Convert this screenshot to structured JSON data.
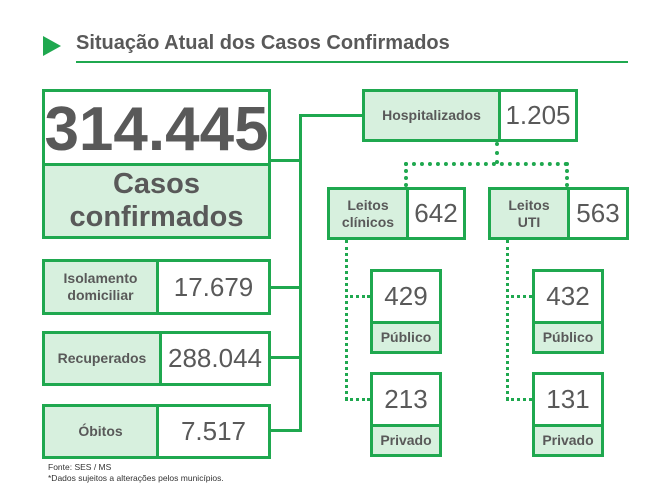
{
  "title": "Situação Atual dos Casos Confirmados",
  "confirmed": {
    "value": "314.445",
    "label_line1": "Casos",
    "label_line2": "confirmados"
  },
  "isolation": {
    "label_line1": "Isolamento",
    "label_line2": "domiciliar",
    "value": "17.679"
  },
  "recovered": {
    "label": "Recuperados",
    "value": "288.044"
  },
  "deaths": {
    "label": "Óbitos",
    "value": "7.517"
  },
  "hospitalized": {
    "label": "Hospitalizados",
    "value": "1.205"
  },
  "clinical_beds": {
    "label_line1": "Leitos",
    "label_line2": "clínicos",
    "value": "642",
    "public": {
      "value": "429",
      "label": "Público"
    },
    "private": {
      "value": "213",
      "label": "Privado"
    }
  },
  "icu_beds": {
    "label_line1": "Leitos",
    "label_line2": "UTI",
    "value": "563",
    "public": {
      "value": "432",
      "label": "Público"
    },
    "private": {
      "value": "131",
      "label": "Privado"
    }
  },
  "footer": {
    "source": "Fonte: SES / MS",
    "note": "*Dados sujeitos a alterações pelos municípios."
  },
  "colors": {
    "accent": "#1fa84f",
    "label_fill": "#d7f0de",
    "text": "#595959"
  }
}
